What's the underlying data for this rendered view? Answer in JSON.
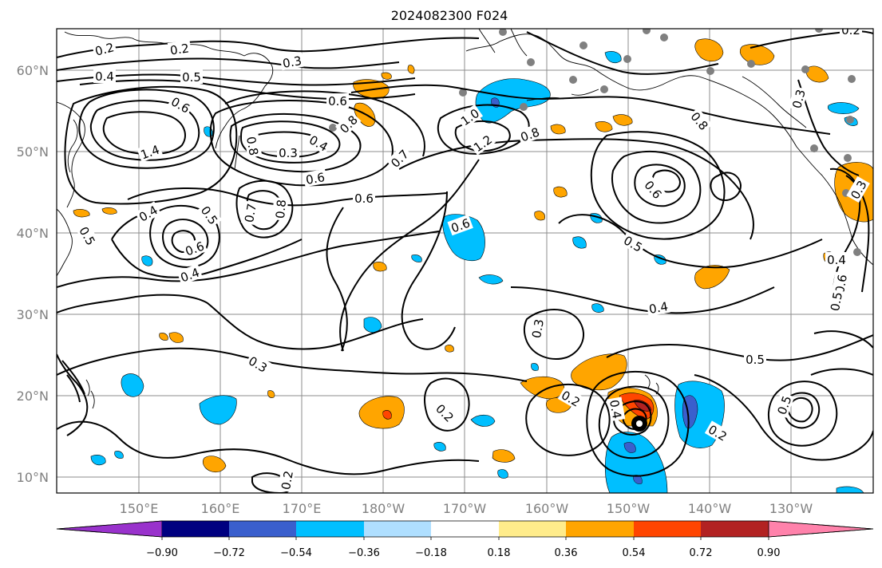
{
  "title": "2024082300 F024",
  "map": {
    "lat_labels": [
      "60°N",
      "50°N",
      "40°N",
      "30°N",
      "20°N",
      "10°N"
    ],
    "lon_labels": [
      "150°E",
      "160°E",
      "170°E",
      "180°W",
      "170°W",
      "160°W",
      "150°W",
      "140°W",
      "130°W"
    ],
    "contour_labels": [
      "0.2",
      "0.2",
      "0.3",
      "0.4",
      "0.5",
      "0.6",
      "0.6",
      "0.8",
      "1.0",
      "1.2",
      "1.4",
      "0.3",
      "0.4",
      "0.6",
      "0.7",
      "0.8",
      "0.6",
      "0.7",
      "0.8",
      "0.4",
      "0.5",
      "0.4",
      "0.3",
      "0.8",
      "0.6",
      "0.5",
      "0.4",
      "0.3",
      "0.2",
      "0.2",
      "0.5",
      "0.2",
      "0.4",
      "0.5",
      "0.3",
      "0.5",
      "0.4",
      "0.6",
      "0.2",
      "0.6",
      "0.6",
      "0.8",
      "0.5",
      "0.2",
      "0.3"
    ]
  },
  "colorbar": {
    "tick_labels": [
      "−0.90",
      "−0.72",
      "−0.54",
      "−0.36",
      "−0.18",
      "0.18",
      "0.36",
      "0.54",
      "0.72",
      "0.90"
    ],
    "colors": [
      "#9932cc",
      "#000080",
      "#3a5fcd",
      "#00bfff",
      "#afdfff",
      "#ffffff",
      "#ffec8b",
      "#ffa500",
      "#ff4500",
      "#b22222",
      "#ff82ab"
    ]
  }
}
